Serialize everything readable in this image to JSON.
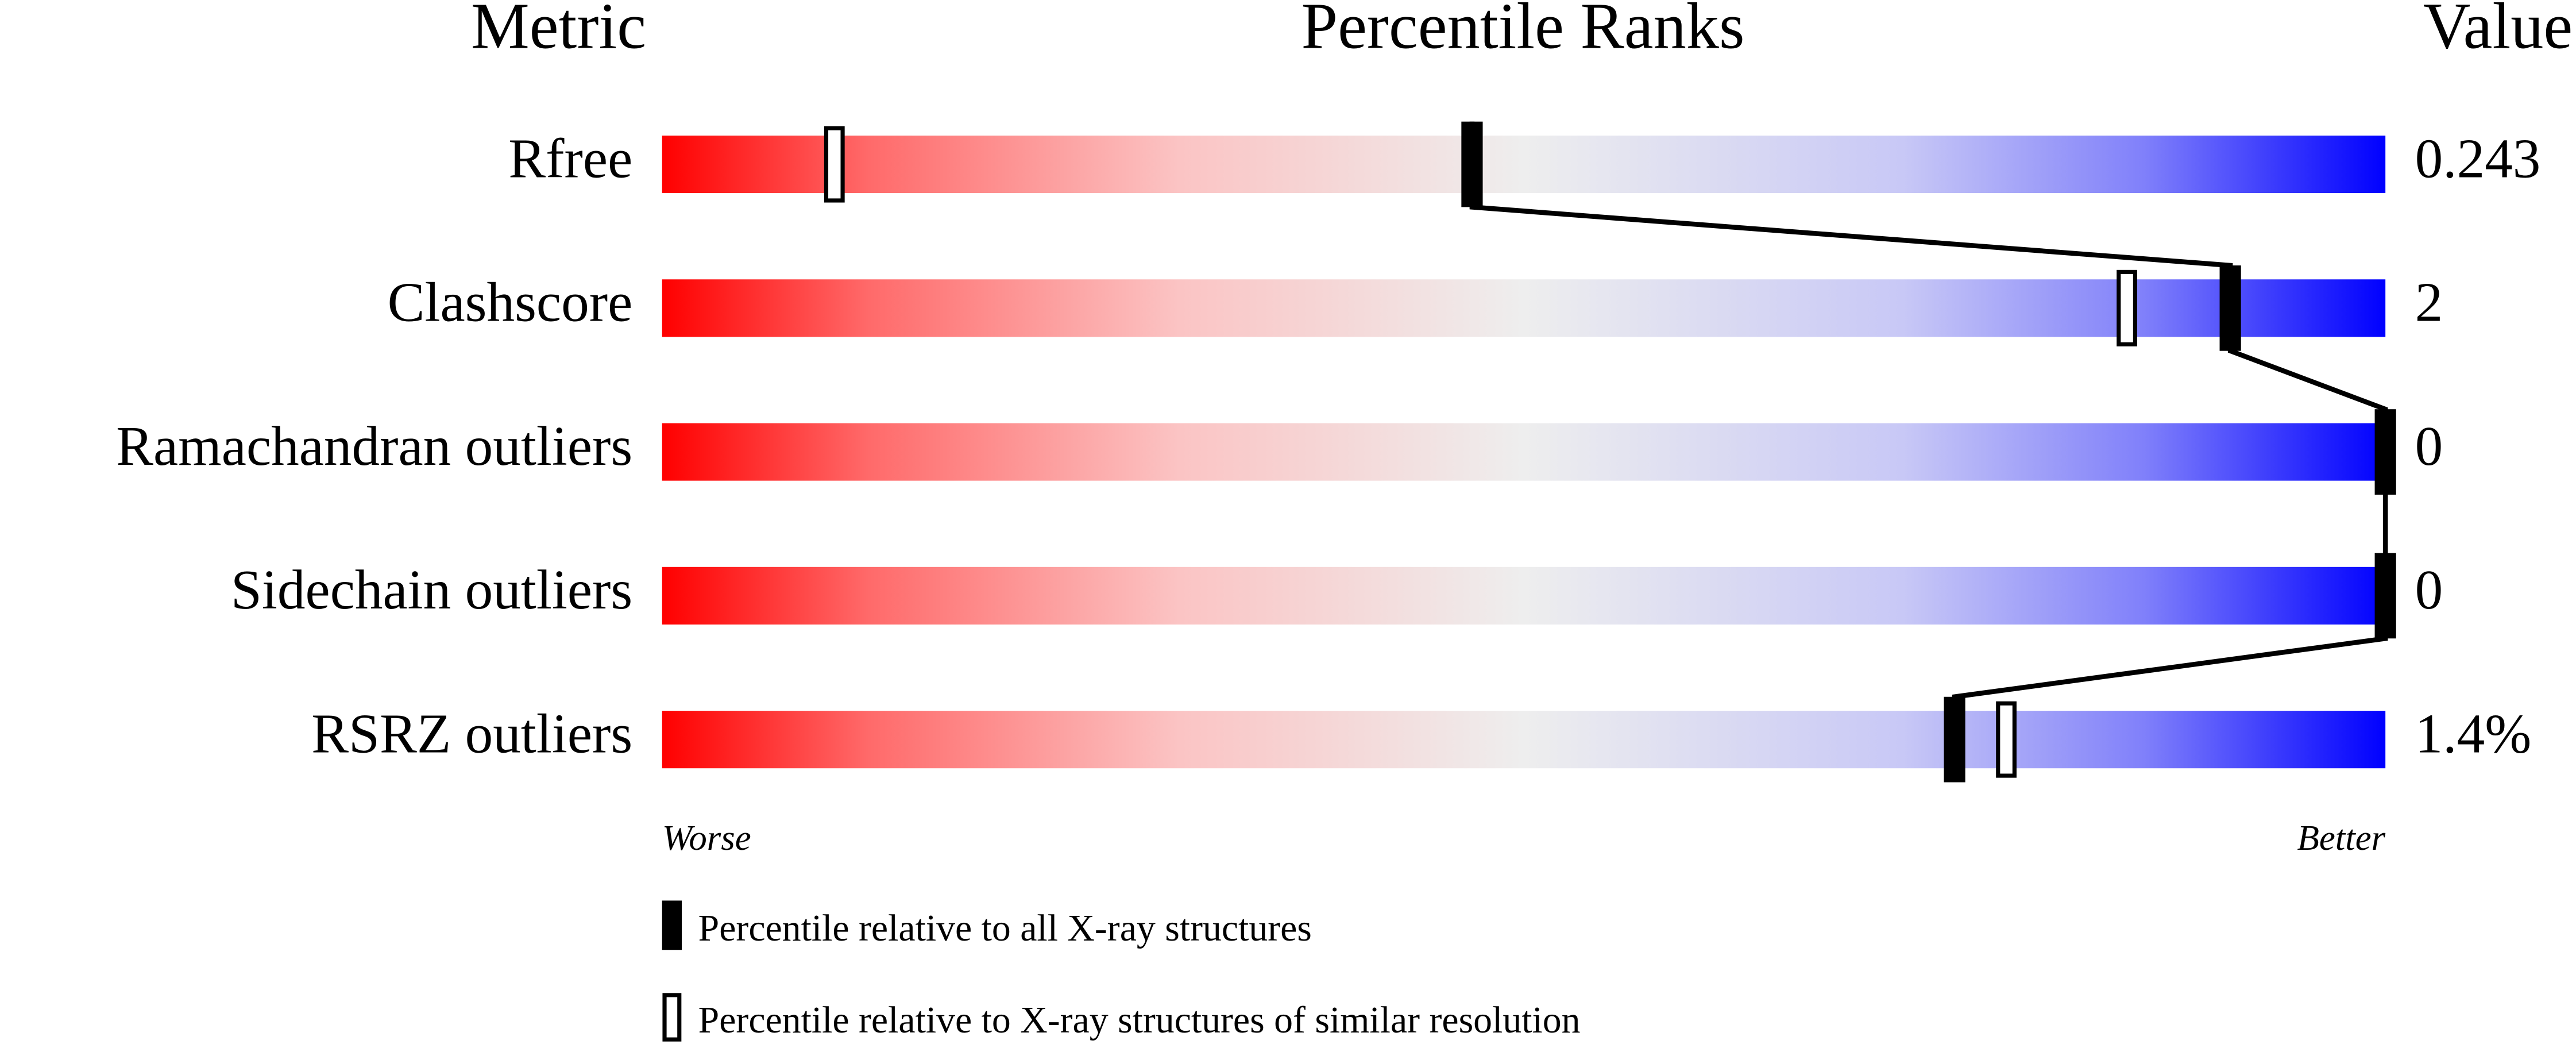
{
  "chart_data": {
    "type": "percentile",
    "column_headers": [
      "Metric",
      "Percentile Ranks",
      "Value"
    ],
    "categories": [
      "Rfree",
      "Clashscore",
      "Ramachandran outliers",
      "Sidechain outliers",
      "RSRZ outliers"
    ],
    "metric_values": [
      "0.243",
      "2",
      "0",
      "0",
      "1.4%"
    ],
    "xlim": [
      0,
      100
    ],
    "axis_labels": [
      "Worse",
      "Better"
    ],
    "series": [
      {
        "name": "Percentile relative to all X-ray structures",
        "color": "#000000",
        "values": [
          47,
          91,
          100,
          100,
          75
        ]
      },
      {
        "name": "Percentile relative to X-ray structures of similar resolution",
        "color": "#000000",
        "values": [
          10,
          85,
          100,
          100,
          78
        ]
      }
    ]
  }
}
